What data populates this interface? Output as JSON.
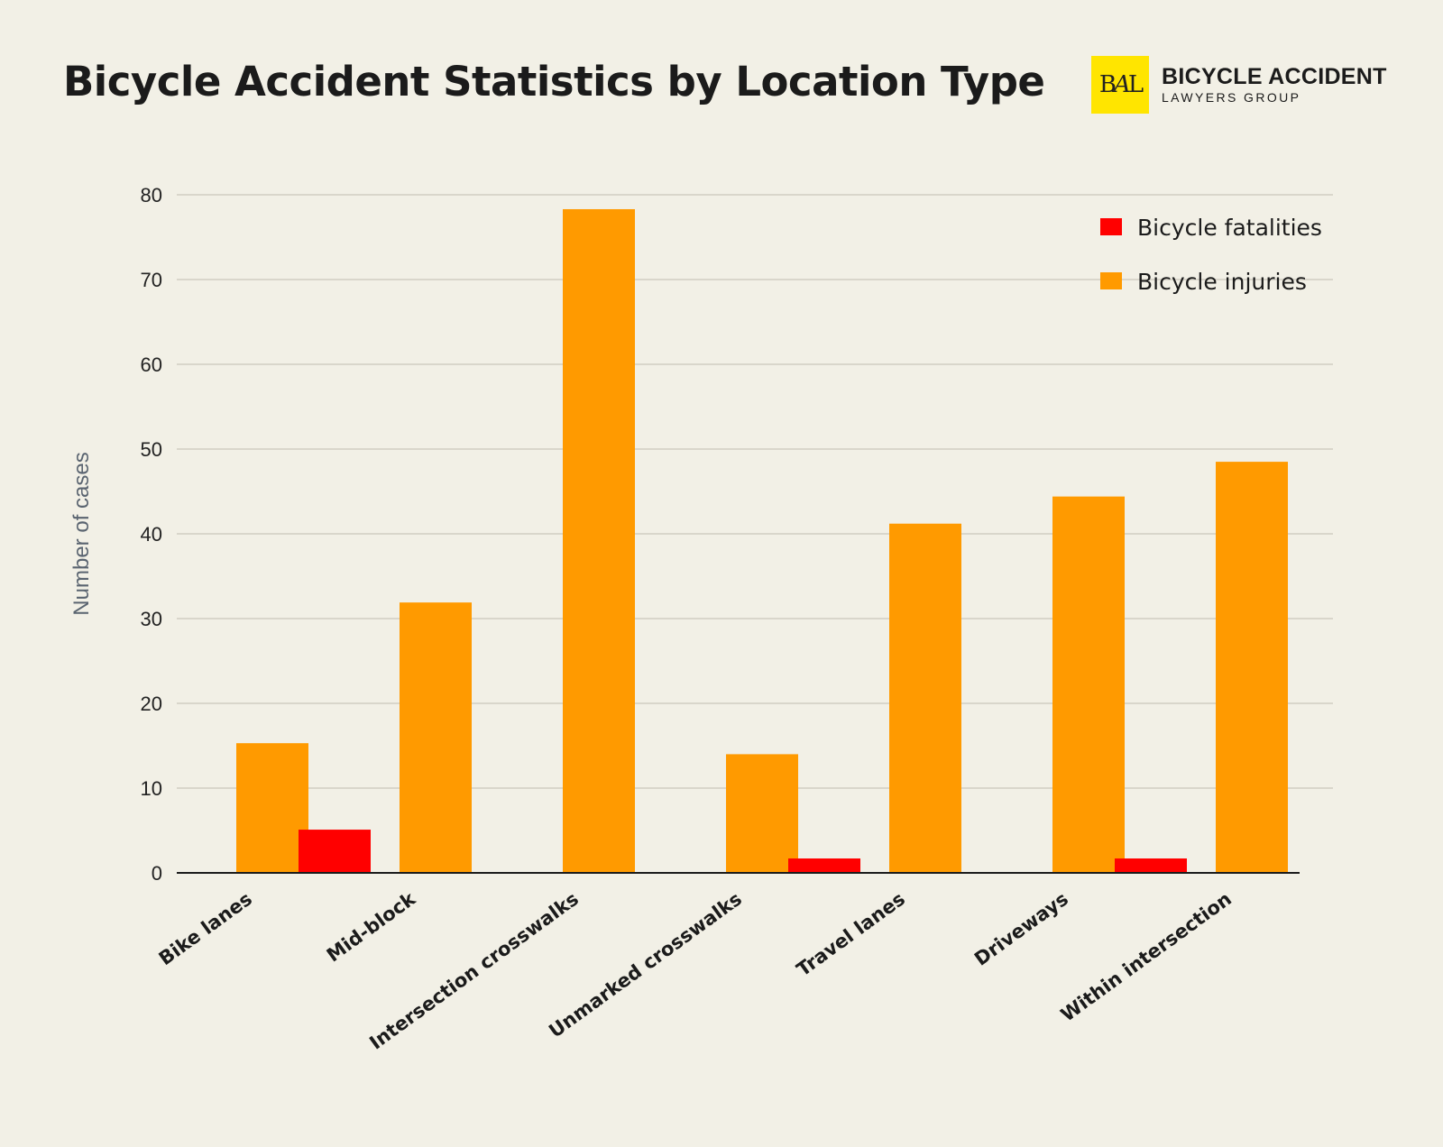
{
  "header": {
    "title": "Bicycle Accident Statistics by Location Type"
  },
  "logo": {
    "mark": "BAL",
    "line1": "BICYCLE ACCIDENT",
    "line2": "LAWYERS GROUP",
    "mark_color": "#ffe500"
  },
  "chart_data": {
    "type": "bar",
    "title": "Bicycle Accident Statistics by Location Type",
    "xlabel": "",
    "ylabel": "Number of cases",
    "ylim": [
      0,
      80
    ],
    "yticks": [
      0,
      10,
      20,
      30,
      40,
      50,
      60,
      70,
      80
    ],
    "grid": true,
    "legend_position": "top-right",
    "categories": [
      "Bike lanes",
      "Mid-block",
      "Intersection crosswalks",
      "Unmarked crosswalks",
      "Travel lanes",
      "Driveways",
      "Within intersection"
    ],
    "series": [
      {
        "name": "Bicycle fatalities",
        "color": "#ff0000",
        "values": [
          0,
          5.1,
          0,
          0,
          1.7,
          0,
          1.7
        ]
      },
      {
        "name": "Bicycle injuries",
        "color": "#ff9a00",
        "values": [
          15.3,
          31.9,
          78.3,
          14.0,
          41.2,
          44.4,
          48.5
        ]
      }
    ]
  }
}
